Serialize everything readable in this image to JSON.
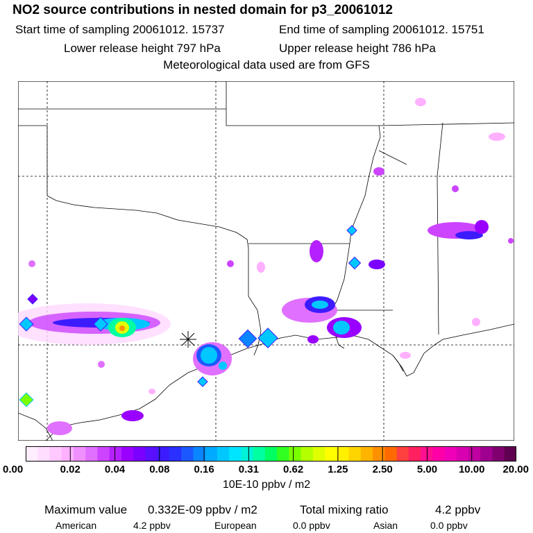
{
  "title": "NO2 source contributions in nested domain for p3_20061012",
  "sampling": {
    "start_label": "Start time of sampling 20061012. 15737",
    "end_label": "End time of sampling 20061012. 15751"
  },
  "release": {
    "lower_label": "Lower release height  797 hPa",
    "upper_label": "Upper release height  786 hPa"
  },
  "met_source": "Meteorological data used are from GFS",
  "colorbar": {
    "tick_labels": [
      "0.00",
      "0.02",
      "0.04",
      "0.08",
      "0.16",
      "0.31",
      "0.62",
      "1.25",
      "2.50",
      "5.00",
      "10.00",
      "20.00"
    ],
    "colors": [
      "#ffeeff",
      "#ffddff",
      "#ffc8ff",
      "#ffb0ff",
      "#f090ff",
      "#e070ff",
      "#cc44ff",
      "#b420ff",
      "#9900ff",
      "#7a00ff",
      "#5a10ff",
      "#3c1cff",
      "#2a30ff",
      "#1c58ff",
      "#0a86ff",
      "#00aaff",
      "#00c8ff",
      "#00e5ff",
      "#00f2d8",
      "#00ffa0",
      "#00ff60",
      "#30ff20",
      "#7aff00",
      "#b4ff00",
      "#e0ff00",
      "#ffff00",
      "#fff000",
      "#ffd400",
      "#ffb400",
      "#ff9000",
      "#ff6a00",
      "#ff4040",
      "#ff2060",
      "#ff1090",
      "#ff00a8",
      "#f000b8",
      "#d800b0",
      "#c000a0",
      "#a00090",
      "#800070",
      "#600050"
    ],
    "units": "10E-10 ppbv / m2"
  },
  "stats": {
    "max_label": "Maximum value",
    "max_value": "0.332E-09 ppbv / m2",
    "total_label": "Total mixing ratio",
    "total_value": "4.2 ppbv"
  },
  "regions": [
    {
      "name": "American",
      "value": "4.2 ppbv"
    },
    {
      "name": "European",
      "value": "0.0 ppbv"
    },
    {
      "name": "Asian",
      "value": "0.0 ppbv"
    }
  ]
}
